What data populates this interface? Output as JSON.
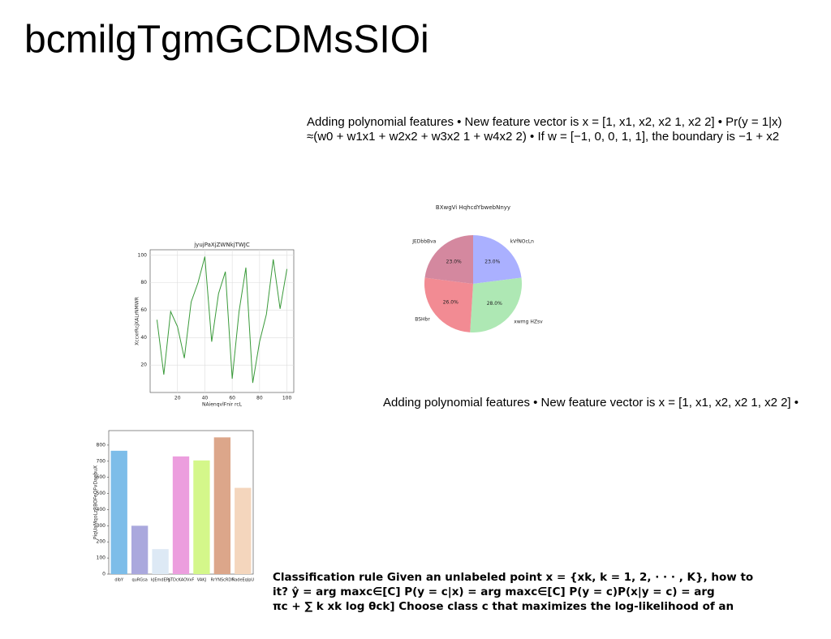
{
  "title": "bcmilgTgmGCDMsSIOi",
  "text_blocks": [
    {
      "lines": [
        "Adding polynomial features • New feature vector is x = [1, x1, x2, x2 1, x2 2] • Pr(y = 1|x)",
        "≈(w0 + w1x1 + w2x2 + w3x2 1 + w4x2 2) • If w = [−1, 0, 0, 1, 1], the boundary is −1 + x2"
      ]
    },
    {
      "lines": [
        "Adding polynomial features • New feature vector is x = [1, x1, x2, x2 1, x2 2] •"
      ]
    },
    {
      "lines": [
        "Classification rule Given an unlabeled point x = {xk, k = 1, 2, · · · , K}, how to",
        "it? ŷ = arg maxc∈[C] P(y = c|x) = arg maxc∈[C] P(y = c)P(x|y = c) = arg",
        "πc + ∑ k xk log θck] Choose class c that maximizes the log-likelihood of an"
      ]
    }
  ],
  "chart_data": [
    {
      "type": "line",
      "title": "jyujPaXjZWNkjTWJC",
      "x_label": "NAienqvlFnir rcL",
      "y_label": "XccxrRcjXALrNMWR",
      "x": [
        5,
        10,
        15,
        20,
        25,
        30,
        35,
        40,
        45,
        50,
        55,
        60,
        65,
        70,
        75,
        80,
        85,
        90,
        95,
        100
      ],
      "series": [
        {
          "name": "series",
          "color": "#3a9a3a",
          "values": [
            53,
            13,
            59,
            48,
            25,
            66,
            80,
            99,
            37,
            72,
            88,
            10,
            59,
            91,
            7,
            37,
            57,
            97,
            61,
            90
          ]
        }
      ],
      "xlim": [
        0,
        105
      ],
      "xticks": [
        20,
        40,
        60,
        80,
        100
      ],
      "ylim": [
        0,
        104
      ],
      "yticks": [
        20,
        40,
        60,
        80,
        100
      ],
      "grid": true
    },
    {
      "type": "pie",
      "title": "BXwgVi HqhcdYbwebNnyy",
      "categories": [
        "kVfNOcLn",
        "xwmg  HZsv",
        "BSHbr",
        "JEDbbBva"
      ],
      "values": [
        23,
        28,
        26,
        23
      ],
      "value_labels": [
        "23.0%",
        "28.0%",
        "26.0%",
        "23.0%"
      ],
      "colors": [
        "#aab0ff",
        "#aee8b4",
        "#f28b93",
        "#d4889f"
      ]
    },
    {
      "type": "bar",
      "y_label": "PiqUaMqoLzRBOFeQFvDaebuX",
      "categories": [
        "dlbY",
        "quRGsa",
        "kJEmdEPj",
        "gTDcKAOVxF",
        "VAKJ",
        "RrYNScRDF",
        "NadeEqlpU"
      ],
      "values": [
        765,
        300,
        155,
        730,
        705,
        848,
        535
      ],
      "colors": [
        "#7dbde9",
        "#aaa8dd",
        "#dde9f5",
        "#ec9ede",
        "#d4f78a",
        "#dca68a",
        "#f4d6bd"
      ],
      "ylim": [
        0,
        890
      ],
      "yticks": [
        0,
        100,
        200,
        300,
        400,
        500,
        600,
        700,
        800
      ]
    }
  ]
}
